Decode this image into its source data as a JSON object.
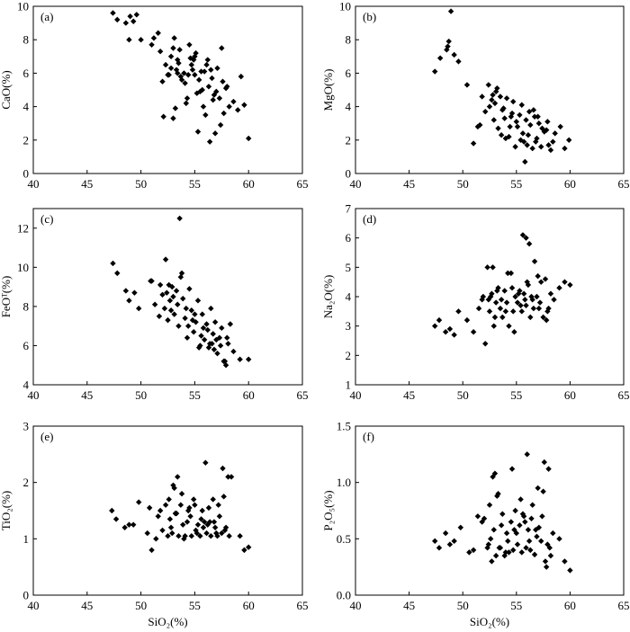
{
  "chart_data": [
    {
      "type": "scatter",
      "panel_label": "(a)",
      "xlabel": "",
      "ylabel": "CaO(%)",
      "xlim": [
        40,
        65
      ],
      "ylim": [
        0,
        10
      ],
      "xticks": [
        40,
        45,
        50,
        55,
        60,
        65
      ],
      "yticks": [
        0,
        2,
        4,
        6,
        8,
        10
      ],
      "xtick_labels": [
        "40",
        "45",
        "50",
        "55",
        "60",
        "65"
      ],
      "ytick_labels": [
        "0",
        "2",
        "4",
        "6",
        "8",
        "10"
      ],
      "grid": false,
      "marker": "diamond",
      "x": [
        47.4,
        47.8,
        48.6,
        49.0,
        49.3,
        49.6,
        48.9,
        50.0,
        51.0,
        51.2,
        51.6,
        51.8,
        52.0,
        52.3,
        52.6,
        52.8,
        53.0,
        53.1,
        53.3,
        53.4,
        53.6,
        53.8,
        54.0,
        54.1,
        54.3,
        54.5,
        54.6,
        54.8,
        55.0,
        55.1,
        55.2,
        55.4,
        55.6,
        55.8,
        56.0,
        56.1,
        56.3,
        56.5,
        56.7,
        56.9,
        57.1,
        57.3,
        57.5,
        57.7,
        57.9,
        58.2,
        58.6,
        59.0,
        59.3,
        59.6,
        60.0,
        52.5,
        53.0,
        53.5,
        54.2,
        54.9,
        55.3,
        55.7,
        56.4,
        57.0,
        57.6,
        52.1,
        53.2,
        54.4,
        55.0,
        56.2,
        57.4,
        52.8,
        53.7,
        55.9,
        56.8,
        58.0,
        53.4,
        54.7,
        55.5,
        56.6
      ],
      "y": [
        9.6,
        9.2,
        9.0,
        9.4,
        9.1,
        9.5,
        8.0,
        8.0,
        7.7,
        8.1,
        8.4,
        7.3,
        5.5,
        6.5,
        5.9,
        7.0,
        7.5,
        8.1,
        6.2,
        6.8,
        7.4,
        5.6,
        6.0,
        5.4,
        4.5,
        7.7,
        6.9,
        6.2,
        5.9,
        7.2,
        4.8,
        5.6,
        6.1,
        4.0,
        3.5,
        6.5,
        5.2,
        6.2,
        4.4,
        2.4,
        6.3,
        4.5,
        7.5,
        3.6,
        5.1,
        4.0,
        4.3,
        3.8,
        5.8,
        4.1,
        2.1,
        5.9,
        3.3,
        6.6,
        4.2,
        6.8,
        2.5,
        5.0,
        1.9,
        4.9,
        5.5,
        3.4,
        3.9,
        5.9,
        7.0,
        6.8,
        2.9,
        6.3,
        5.8,
        6.1,
        4.7,
        5.2,
        6.0,
        6.5,
        4.9,
        5.7
      ]
    },
    {
      "type": "scatter",
      "panel_label": "(b)",
      "xlabel": "",
      "ylabel": "MgO(%)",
      "xlim": [
        40,
        65
      ],
      "ylim": [
        0,
        10
      ],
      "xticks": [
        40,
        45,
        50,
        55,
        60,
        65
      ],
      "yticks": [
        0,
        2,
        4,
        6,
        8,
        10
      ],
      "xtick_labels": [
        "40",
        "45",
        "50",
        "55",
        "60",
        "65"
      ],
      "ytick_labels": [
        "0",
        "2",
        "4",
        "6",
        "8",
        "10"
      ],
      "grid": false,
      "marker": "diamond",
      "x": [
        47.4,
        47.9,
        48.5,
        48.7,
        48.9,
        49.2,
        49.6,
        48.6,
        50.4,
        51.0,
        51.4,
        51.8,
        52.1,
        52.4,
        52.7,
        52.9,
        53.1,
        53.3,
        53.5,
        53.7,
        53.9,
        54.1,
        54.3,
        54.5,
        54.7,
        54.9,
        55.1,
        55.3,
        55.5,
        55.7,
        55.9,
        56.1,
        56.3,
        56.5,
        56.7,
        56.9,
        57.1,
        57.3,
        57.6,
        57.9,
        58.2,
        58.6,
        59.1,
        59.5,
        59.9,
        52.5,
        53.2,
        53.8,
        54.4,
        55.0,
        55.6,
        56.2,
        56.8,
        57.4,
        58.0,
        52.8,
        53.6,
        54.6,
        55.4,
        56.0,
        57.0,
        57.8,
        53.0,
        54.0,
        55.8,
        56.6,
        58.4,
        51.6
      ],
      "y": [
        6.1,
        6.9,
        7.4,
        7.9,
        9.7,
        7.1,
        6.7,
        7.6,
        5.3,
        1.8,
        2.8,
        4.6,
        3.7,
        5.3,
        4.4,
        3.2,
        4.9,
        2.7,
        4.6,
        3.8,
        3.3,
        4.5,
        2.2,
        3.4,
        4.3,
        1.6,
        2.8,
        3.5,
        4.1,
        1.9,
        3.2,
        2.3,
        2.9,
        1.5,
        3.4,
        2.1,
        3.0,
        1.6,
        2.5,
        3.1,
        1.4,
        2.4,
        2.8,
        1.5,
        2.0,
        4.0,
        5.1,
        3.9,
        2.8,
        3.1,
        2.4,
        3.7,
        1.9,
        2.7,
        1.7,
        4.7,
        2.3,
        3.6,
        2.0,
        1.7,
        3.4,
        2.6,
        4.2,
        2.1,
        0.7,
        3.8,
        1.9,
        2.9
      ]
    },
    {
      "type": "scatter",
      "panel_label": "(c)",
      "xlabel": "",
      "ylabel": "FeOᵀ(%)",
      "xlim": [
        40,
        65
      ],
      "ylim": [
        4,
        13
      ],
      "xticks": [
        40,
        45,
        50,
        55,
        60,
        65
      ],
      "yticks": [
        4,
        6,
        8,
        10,
        12
      ],
      "xtick_labels": [
        "40",
        "45",
        "50",
        "55",
        "60",
        "65"
      ],
      "ytick_labels": [
        "4",
        "6",
        "8",
        "10",
        "12"
      ],
      "grid": false,
      "marker": "diamond",
      "x": [
        47.4,
        47.8,
        48.6,
        48.9,
        49.4,
        49.8,
        50.9,
        51.3,
        51.7,
        52.0,
        52.3,
        52.5,
        52.7,
        52.9,
        53.1,
        53.3,
        53.5,
        53.7,
        53.9,
        54.1,
        54.3,
        54.5,
        54.7,
        54.9,
        55.1,
        55.3,
        55.5,
        55.7,
        55.9,
        56.1,
        56.3,
        56.5,
        56.7,
        56.9,
        57.1,
        57.3,
        57.5,
        57.7,
        57.9,
        58.1,
        58.3,
        58.6,
        59.2,
        60.0,
        53.6,
        52.2,
        51.8,
        52.6,
        53.0,
        53.8,
        54.4,
        55.0,
        55.6,
        56.2,
        56.8,
        57.4,
        58.0,
        52.8,
        53.4,
        54.2,
        55.4,
        56.4,
        57.0,
        57.8,
        54.8,
        55.8,
        56.6,
        51.0,
        52.4
      ],
      "y": [
        10.2,
        9.7,
        8.8,
        8.3,
        8.7,
        7.9,
        9.3,
        8.1,
        7.5,
        8.6,
        10.4,
        7.3,
        8.3,
        9.0,
        7.6,
        8.8,
        7.0,
        9.5,
        8.4,
        7.4,
        6.4,
        8.9,
        7.8,
        6.7,
        7.2,
        8.3,
        6.0,
        7.6,
        6.3,
        7.1,
        5.9,
        7.9,
        6.6,
        7.2,
        5.6,
        6.4,
        6.9,
        5.2,
        5.0,
        6.1,
        7.1,
        5.7,
        5.3,
        5.3,
        12.5,
        7.9,
        9.1,
        9.1,
        8.5,
        9.7,
        7.0,
        7.6,
        6.5,
        6.8,
        5.8,
        6.0,
        6.4,
        7.8,
        8.1,
        7.9,
        5.9,
        6.1,
        6.3,
        5.2,
        7.3,
        6.9,
        6.1,
        9.3,
        8.7
      ]
    },
    {
      "type": "scatter",
      "panel_label": "(d)",
      "xlabel": "",
      "ylabel": "Na₂O(%)",
      "xlim": [
        40,
        65
      ],
      "ylim": [
        1,
        7
      ],
      "xticks": [
        40,
        45,
        50,
        55,
        60,
        65
      ],
      "yticks": [
        1,
        2,
        3,
        4,
        5,
        6,
        7
      ],
      "xtick_labels": [
        "40",
        "45",
        "50",
        "55",
        "60",
        "65"
      ],
      "ytick_labels": [
        "1",
        "2",
        "3",
        "4",
        "5",
        "6",
        "7"
      ],
      "grid": false,
      "marker": "diamond",
      "x": [
        47.4,
        47.8,
        48.4,
        48.8,
        49.2,
        49.6,
        50.4,
        51.0,
        51.5,
        51.9,
        52.1,
        52.3,
        52.5,
        52.7,
        52.9,
        53.1,
        53.3,
        53.5,
        53.7,
        53.9,
        54.1,
        54.3,
        54.5,
        54.7,
        54.9,
        55.1,
        55.3,
        55.5,
        55.7,
        55.9,
        56.1,
        56.3,
        56.5,
        56.7,
        56.9,
        57.1,
        57.3,
        57.5,
        57.7,
        57.9,
        58.2,
        58.5,
        59.0,
        59.5,
        60.0,
        55.6,
        55.9,
        56.2,
        52.4,
        53.0,
        53.6,
        54.2,
        54.8,
        55.4,
        56.0,
        56.6,
        57.2,
        57.8,
        52.6,
        53.2,
        54.0,
        54.6,
        55.2,
        55.8,
        56.4,
        57.0,
        58.0,
        51.8,
        52.8
      ],
      "y": [
        3.0,
        3.2,
        2.8,
        2.9,
        2.7,
        3.5,
        3.2,
        2.8,
        3.6,
        4.0,
        2.4,
        5.0,
        3.5,
        4.1,
        3.0,
        3.8,
        4.3,
        3.6,
        3.3,
        4.2,
        3.8,
        3.0,
        4.8,
        3.5,
        4.0,
        3.8,
        4.2,
        3.5,
        4.1,
        3.7,
        4.4,
        3.3,
        3.9,
        5.2,
        4.0,
        3.6,
        4.5,
        3.3,
        4.6,
        3.5,
        4.1,
        3.9,
        4.3,
        4.5,
        4.4,
        6.1,
        6.0,
        5.8,
        3.9,
        3.3,
        3.9,
        4.8,
        2.8,
        3.7,
        4.5,
        3.6,
        3.8,
        3.2,
        4.0,
        4.2,
        3.5,
        4.3,
        4.1,
        3.9,
        4.0,
        4.7,
        3.6,
        3.9,
        5.0
      ],
      "ytick_labels_prefix": ""
    },
    {
      "type": "scatter",
      "panel_label": "(e)",
      "xlabel": "SiO₂(%)",
      "ylabel": "TiO₂(%)",
      "xlim": [
        40,
        65
      ],
      "ylim": [
        0,
        3
      ],
      "xticks": [
        40,
        45,
        50,
        55,
        60,
        65
      ],
      "yticks": [
        0,
        1,
        2,
        3
      ],
      "xtick_labels": [
        "40",
        "45",
        "50",
        "55",
        "60",
        "65"
      ],
      "ytick_labels": [
        "0",
        "1",
        "2",
        "3"
      ],
      "grid": false,
      "marker": "diamond",
      "x": [
        47.3,
        47.7,
        48.5,
        48.9,
        49.3,
        49.8,
        50.8,
        51.0,
        51.4,
        51.8,
        52.0,
        52.3,
        52.5,
        52.7,
        52.9,
        53.1,
        53.3,
        53.5,
        53.7,
        53.9,
        54.1,
        54.3,
        54.5,
        54.7,
        54.9,
        55.1,
        55.3,
        55.5,
        55.7,
        55.9,
        56.1,
        56.3,
        56.5,
        56.7,
        56.9,
        57.1,
        57.3,
        57.5,
        57.7,
        57.9,
        58.1,
        58.4,
        59.2,
        59.6,
        60.0,
        56.0,
        57.6,
        53.4,
        52.6,
        53.0,
        53.8,
        54.4,
        55.0,
        55.6,
        56.2,
        56.8,
        57.2,
        57.8,
        52.8,
        53.2,
        54.0,
        54.6,
        55.2,
        55.8,
        56.4,
        57.0,
        58.2,
        51.6,
        50.6
      ],
      "y": [
        1.5,
        1.35,
        1.2,
        1.25,
        1.25,
        1.65,
        1.55,
        0.8,
        1.0,
        1.5,
        1.15,
        1.6,
        1.05,
        1.35,
        1.1,
        1.9,
        1.45,
        1.05,
        1.6,
        1.25,
        1.05,
        1.3,
        1.55,
        1.05,
        1.7,
        1.15,
        1.25,
        1.05,
        1.5,
        1.3,
        1.1,
        1.55,
        1.05,
        1.7,
        1.2,
        1.05,
        1.4,
        1.1,
        1.75,
        1.2,
        2.1,
        2.1,
        1.05,
        0.8,
        0.85,
        2.35,
        2.25,
        2.1,
        1.7,
        1.95,
        1.8,
        1.5,
        1.6,
        1.35,
        1.25,
        1.3,
        1.6,
        1.15,
        1.2,
        1.45,
        1.0,
        1.4,
        1.1,
        1.2,
        1.3,
        1.1,
        1.05,
        1.4,
        1.1
      ]
    },
    {
      "type": "scatter",
      "panel_label": "(f)",
      "xlabel": "SiO₂(%)",
      "ylabel": "P₂O₅(%)",
      "xlim": [
        40,
        65
      ],
      "ylim": [
        0,
        1.5
      ],
      "xticks": [
        40,
        45,
        50,
        55,
        60,
        65
      ],
      "yticks": [
        0,
        0.5,
        1.0,
        1.5
      ],
      "xtick_labels": [
        "40",
        "45",
        "50",
        "55",
        "60",
        "65"
      ],
      "ytick_labels": [
        "0.0",
        "0.5",
        "1.0",
        "1.5"
      ],
      "grid": false,
      "marker": "diamond",
      "x": [
        47.4,
        47.8,
        48.4,
        48.8,
        49.2,
        49.8,
        50.6,
        51.0,
        51.4,
        51.8,
        52.0,
        52.3,
        52.5,
        52.7,
        52.9,
        53.1,
        53.3,
        53.5,
        53.7,
        53.9,
        54.1,
        54.3,
        54.5,
        54.7,
        54.9,
        55.1,
        55.3,
        55.5,
        55.7,
        55.9,
        56.1,
        56.3,
        56.5,
        56.7,
        56.9,
        57.1,
        57.3,
        57.5,
        57.7,
        57.9,
        58.1,
        58.4,
        59.0,
        59.5,
        60.0,
        56.0,
        57.6,
        58.0,
        52.8,
        53.0,
        53.2,
        54.6,
        55.4,
        56.4,
        57.0,
        52.6,
        53.6,
        54.2,
        55.0,
        55.6,
        56.2,
        56.8,
        57.4,
        57.8,
        58.2,
        52.4,
        53.4,
        54.0,
        54.8,
        55.8
      ],
      "y": [
        0.48,
        0.42,
        0.55,
        0.45,
        0.48,
        0.6,
        0.38,
        0.4,
        0.7,
        0.65,
        0.68,
        0.42,
        0.8,
        0.3,
        0.58,
        0.35,
        0.9,
        0.42,
        0.72,
        0.35,
        0.55,
        0.38,
        0.65,
        0.4,
        0.75,
        0.45,
        0.62,
        0.38,
        0.7,
        0.42,
        0.58,
        0.4,
        0.8,
        0.36,
        0.52,
        0.6,
        0.48,
        0.92,
        0.3,
        0.45,
        0.42,
        0.55,
        0.5,
        0.3,
        0.22,
        1.25,
        1.18,
        1.12,
        1.05,
        1.08,
        0.88,
        1.12,
        0.85,
        0.68,
        0.95,
        0.5,
        0.62,
        0.48,
        0.55,
        0.72,
        0.48,
        0.58,
        0.7,
        0.25,
        0.35,
        0.45,
        0.42,
        0.38,
        0.58,
        0.65
      ]
    }
  ]
}
